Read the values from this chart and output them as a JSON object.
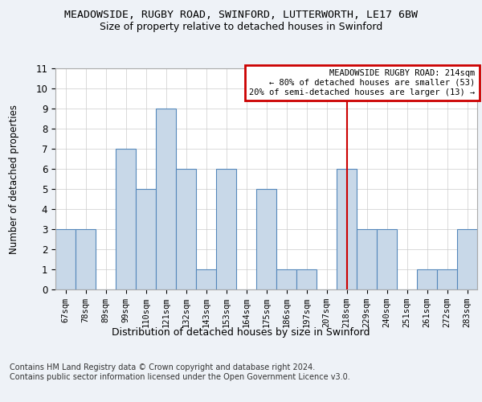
{
  "title_line1": "MEADOWSIDE, RUGBY ROAD, SWINFORD, LUTTERWORTH, LE17 6BW",
  "title_line2": "Size of property relative to detached houses in Swinford",
  "xlabel": "Distribution of detached houses by size in Swinford",
  "ylabel": "Number of detached properties",
  "categories": [
    "67sqm",
    "78sqm",
    "89sqm",
    "99sqm",
    "110sqm",
    "121sqm",
    "132sqm",
    "143sqm",
    "153sqm",
    "164sqm",
    "175sqm",
    "186sqm",
    "197sqm",
    "207sqm",
    "218sqm",
    "229sqm",
    "240sqm",
    "251sqm",
    "261sqm",
    "272sqm",
    "283sqm"
  ],
  "values": [
    3,
    3,
    0,
    7,
    5,
    9,
    6,
    1,
    6,
    0,
    5,
    1,
    1,
    0,
    6,
    3,
    3,
    0,
    1,
    1,
    3
  ],
  "bar_color": "#c8d8e8",
  "bar_edge_color": "#5588bb",
  "vline_x_index": 14.0,
  "vline_color": "#cc0000",
  "annotation_text": "MEADOWSIDE RUGBY ROAD: 214sqm\n← 80% of detached houses are smaller (53)\n20% of semi-detached houses are larger (13) →",
  "annotation_box_color": "#cc0000",
  "ylim": [
    0,
    11
  ],
  "yticks": [
    0,
    1,
    2,
    3,
    4,
    5,
    6,
    7,
    8,
    9,
    10,
    11
  ],
  "footer_text": "Contains HM Land Registry data © Crown copyright and database right 2024.\nContains public sector information licensed under the Open Government Licence v3.0.",
  "bg_color": "#eef2f7",
  "plot_bg_color": "#ffffff"
}
